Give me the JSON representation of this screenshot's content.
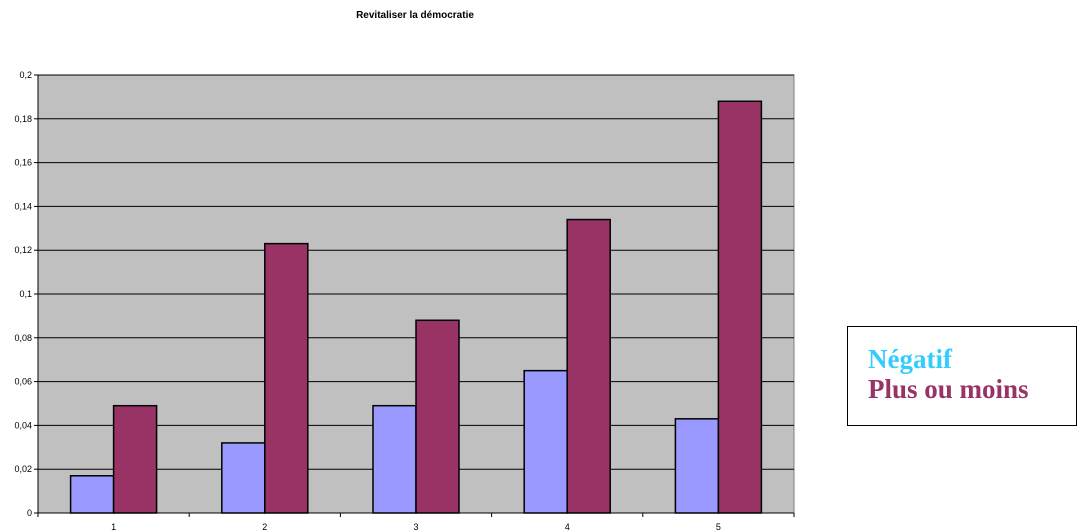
{
  "chart_data": {
    "type": "bar",
    "title": "Revitaliser la démocratie",
    "xlabel": "",
    "ylabel": "",
    "categories": [
      "1",
      "2",
      "3",
      "4",
      "5"
    ],
    "series": [
      {
        "name": "Négatif",
        "color": "#9999ff",
        "values": [
          0.017,
          0.032,
          0.049,
          0.065,
          0.043
        ]
      },
      {
        "name": "Plus ou moins",
        "color": "#993366",
        "values": [
          0.049,
          0.123,
          0.088,
          0.134,
          0.188
        ]
      }
    ],
    "ylim": [
      0,
      0.2
    ],
    "yticks": [
      "0",
      "0,02",
      "0,04",
      "0,06",
      "0,08",
      "0,1",
      "0,12",
      "0,14",
      "0,16",
      "0,18",
      "0,2"
    ],
    "grid": true,
    "plot_background": "#c0c0c0",
    "legend": {
      "position": "right",
      "entries": [
        {
          "label": "Négatif",
          "color": "#33ccff"
        },
        {
          "label": "Plus ou moins",
          "color": "#993366"
        }
      ]
    }
  }
}
